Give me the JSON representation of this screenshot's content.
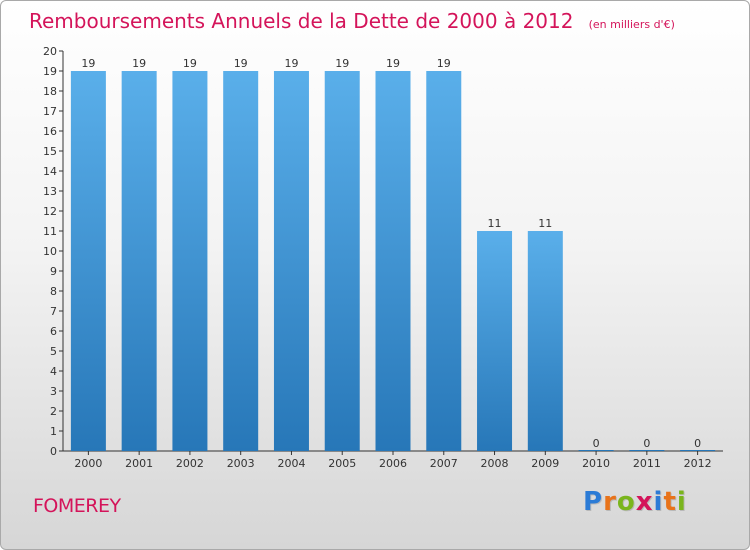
{
  "header": {
    "title": "Remboursements Annuels de la Dette de 2000 à 2012",
    "unit": "(en milliers d'€)"
  },
  "footer": {
    "commune": "FOMEREY",
    "logo": "Proxiti",
    "logo_letters": [
      {
        "char": "P",
        "color": "#2b7bd6"
      },
      {
        "char": "r",
        "color": "#e8731a"
      },
      {
        "char": "o",
        "color": "#7ab51d"
      },
      {
        "char": "x",
        "color": "#d4145a"
      },
      {
        "char": "i",
        "color": "#2b7bd6"
      },
      {
        "char": "t",
        "color": "#e8731a"
      },
      {
        "char": "i",
        "color": "#7ab51d"
      }
    ]
  },
  "colors": {
    "accent": "#d4145a",
    "bar_top": "#5aafea",
    "bar_bottom": "#2777b8"
  },
  "chart_data": {
    "type": "bar",
    "title": "Remboursements Annuels de la Dette de 2000 à 2012",
    "xlabel": "",
    "ylabel": "",
    "ylim": [
      0,
      20
    ],
    "yticks": [
      0,
      1,
      2,
      3,
      4,
      5,
      6,
      7,
      8,
      9,
      10,
      11,
      12,
      13,
      14,
      15,
      16,
      17,
      18,
      19,
      20
    ],
    "grid": false,
    "categories": [
      "2000",
      "2001",
      "2002",
      "2003",
      "2004",
      "2005",
      "2006",
      "2007",
      "2008",
      "2009",
      "2010",
      "2011",
      "2012"
    ],
    "values": [
      19,
      19,
      19,
      19,
      19,
      19,
      19,
      19,
      11,
      11,
      0,
      0,
      0
    ]
  }
}
